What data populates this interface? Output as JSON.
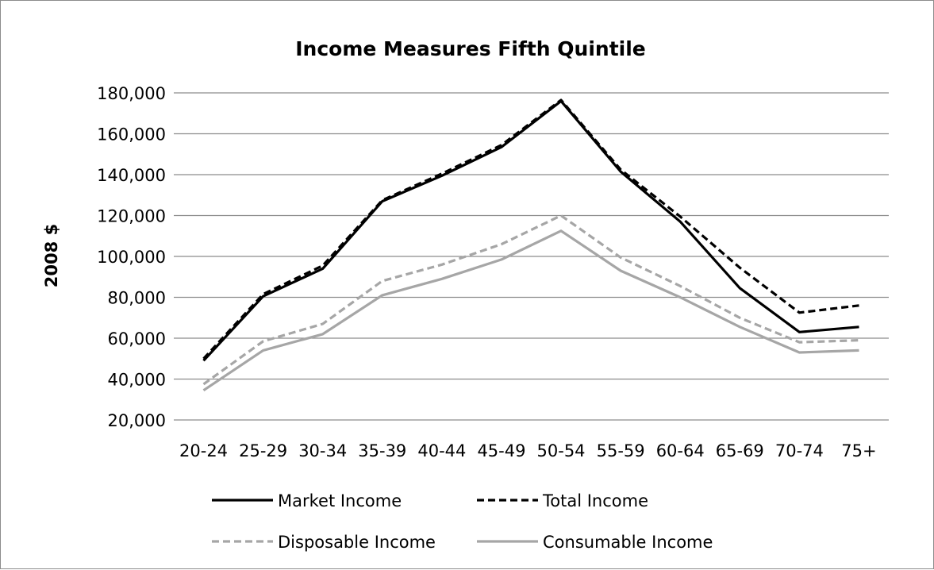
{
  "chart_data": {
    "type": "line",
    "title": "Income Measures Fifth Quintile",
    "xlabel": "",
    "ylabel": "2008 $",
    "categories": [
      "20-24",
      "25-29",
      "30-34",
      "35-39",
      "40-44",
      "45-49",
      "50-54",
      "55-59",
      "60-64",
      "65-69",
      "70-74",
      "75+"
    ],
    "ylim": [
      20000,
      180000
    ],
    "yticks": [
      20000,
      40000,
      60000,
      80000,
      100000,
      120000,
      140000,
      160000,
      180000
    ],
    "ytick_labels": [
      "20,000",
      "40,000",
      "60,000",
      "80,000",
      "100,000",
      "120,000",
      "140,000",
      "160,000",
      "180,000"
    ],
    "grid": true,
    "legend_placement": "bottom",
    "series": [
      {
        "name": "Market Income",
        "color": "#000000",
        "dash": "solid",
        "values": [
          49000,
          80500,
          94000,
          127000,
          139500,
          153500,
          176000,
          141500,
          117000,
          84500,
          63000,
          65500
        ]
      },
      {
        "name": "Total Income",
        "color": "#000000",
        "dash": "dashed",
        "values": [
          50000,
          81500,
          95500,
          127500,
          140500,
          154500,
          176500,
          142500,
          119500,
          94500,
          72500,
          76000
        ]
      },
      {
        "name": "Disposable Income",
        "color": "#a6a6a6",
        "dash": "dashed",
        "values": [
          37500,
          58500,
          67000,
          88000,
          96000,
          106000,
          120000,
          99500,
          85500,
          70000,
          58000,
          59000
        ]
      },
      {
        "name": "Consumable Income",
        "color": "#a6a6a6",
        "dash": "solid",
        "values": [
          34500,
          54000,
          62000,
          81000,
          89000,
          98500,
          112500,
          93000,
          80000,
          65500,
          53000,
          54000
        ]
      }
    ]
  }
}
